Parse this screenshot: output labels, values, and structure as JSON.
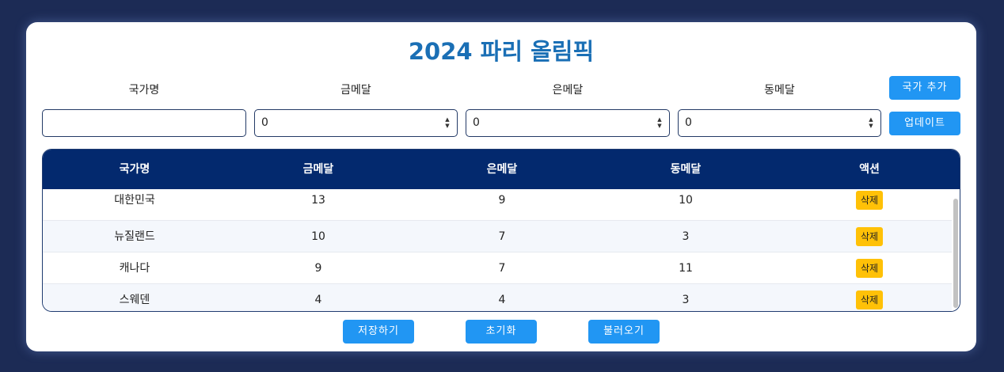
{
  "title": "2024 파리 올림픽",
  "form": {
    "labels": [
      "국가명",
      "금메달",
      "은메달",
      "동메달"
    ],
    "country_value": "",
    "gold_value": "0",
    "silver_value": "0",
    "bronze_value": "0",
    "add_button": "국가 추가",
    "update_button": "업데이트"
  },
  "table": {
    "headers": [
      "국가명",
      "금메달",
      "은메달",
      "동메달",
      "액션"
    ],
    "delete_label": "삭제",
    "rows": [
      {
        "country": "대한민국",
        "gold": "13",
        "silver": "9",
        "bronze": "10"
      },
      {
        "country": "뉴질랜드",
        "gold": "10",
        "silver": "7",
        "bronze": "3"
      },
      {
        "country": "캐나다",
        "gold": "9",
        "silver": "7",
        "bronze": "11"
      },
      {
        "country": "스웨덴",
        "gold": "4",
        "silver": "4",
        "bronze": "3"
      }
    ]
  },
  "footer": {
    "save_button": "저장하기",
    "reset_button": "초기화",
    "load_button": "불러오기"
  },
  "colors": {
    "background": "#1c2b55",
    "title": "#1a6fb5",
    "header_bg": "#03296e",
    "button": "#2196f3",
    "delete_button": "#ffc107"
  }
}
